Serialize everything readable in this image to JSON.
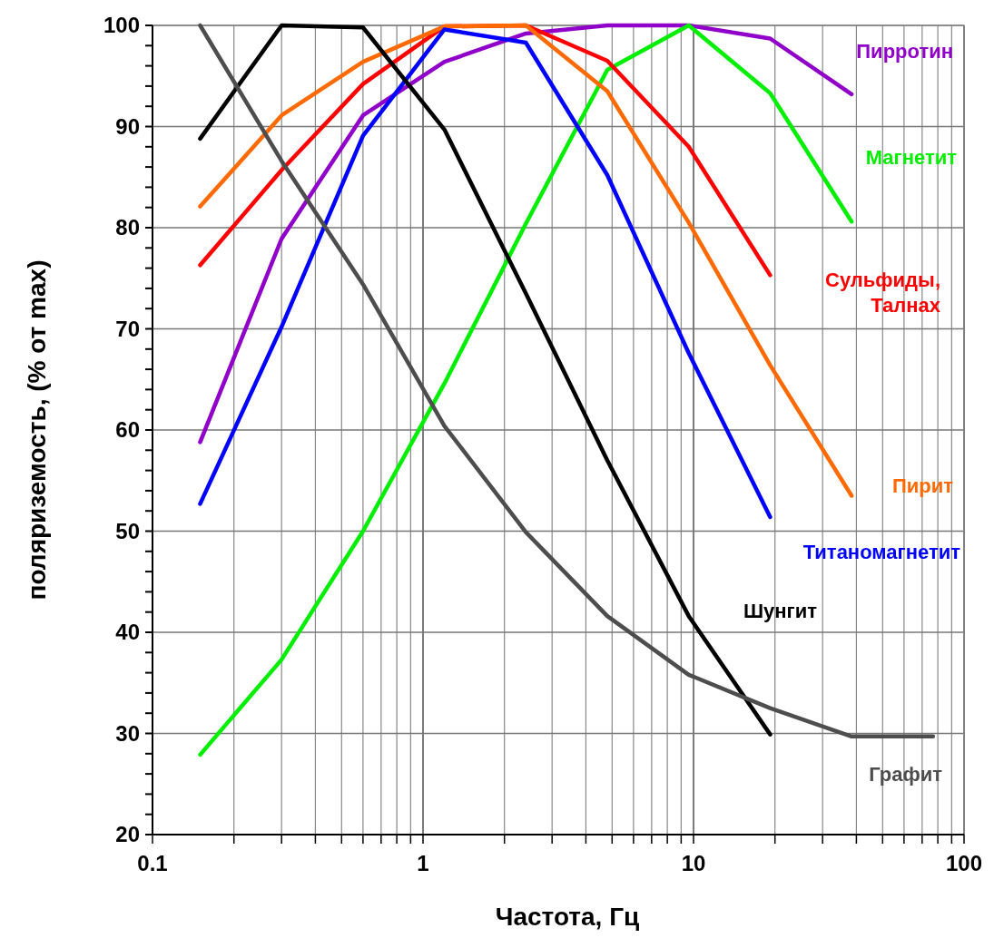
{
  "chart_data": {
    "type": "line",
    "xlabel": "Частота, Гц",
    "ylabel": "поляриземость, (% от max)",
    "log": "x",
    "grid": true,
    "marker": "none",
    "line_style": "solid",
    "xlim": [
      0.1,
      100
    ],
    "ylim": [
      20,
      100
    ],
    "xticks": [
      0.1,
      {
        "value": 0.2,
        "label": null
      },
      {
        "value": 0.3,
        "label": null
      },
      {
        "value": 0.4,
        "label": null
      },
      {
        "value": 0.5,
        "label": null
      },
      {
        "value": 0.6,
        "label": null
      },
      {
        "value": 0.7,
        "label": null
      },
      {
        "value": 0.8,
        "label": null
      },
      {
        "value": 0.9,
        "label": null
      },
      1,
      {
        "value": 2,
        "label": null
      },
      {
        "value": 3,
        "label": null
      },
      {
        "value": 4,
        "label": null
      },
      {
        "value": 5,
        "label": null
      },
      {
        "value": 6,
        "label": null
      },
      {
        "value": 7,
        "label": null
      },
      {
        "value": 8,
        "label": null
      },
      {
        "value": 9,
        "label": null
      },
      10,
      {
        "value": 20,
        "label": null
      },
      {
        "value": 30,
        "label": null
      },
      {
        "value": 40,
        "label": null
      },
      {
        "value": 50,
        "label": null
      },
      {
        "value": 60,
        "label": null
      },
      {
        "value": 70,
        "label": null
      },
      {
        "value": 80,
        "label": null
      },
      {
        "value": 90,
        "label": null
      },
      100
    ],
    "yticks": [
      20,
      {
        "value": 22,
        "label": null
      },
      {
        "value": 24,
        "label": null
      },
      {
        "value": 26,
        "label": null
      },
      {
        "value": 28,
        "label": null
      },
      30,
      {
        "value": 32,
        "label": null
      },
      {
        "value": 34,
        "label": null
      },
      {
        "value": 36,
        "label": null
      },
      {
        "value": 38,
        "label": null
      },
      40,
      {
        "value": 42,
        "label": null
      },
      {
        "value": 44,
        "label": null
      },
      {
        "value": 46,
        "label": null
      },
      {
        "value": 48,
        "label": null
      },
      50,
      {
        "value": 52,
        "label": null
      },
      {
        "value": 54,
        "label": null
      },
      {
        "value": 56,
        "label": null
      },
      {
        "value": 58,
        "label": null
      },
      60,
      {
        "value": 62,
        "label": null
      },
      {
        "value": 64,
        "label": null
      },
      {
        "value": 66,
        "label": null
      },
      {
        "value": 68,
        "label": null
      },
      70,
      {
        "value": 72,
        "label": null
      },
      {
        "value": 74,
        "label": null
      },
      {
        "value": 76,
        "label": null
      },
      {
        "value": 78,
        "label": null
      },
      80,
      {
        "value": 82,
        "label": null
      },
      {
        "value": 84,
        "label": null
      },
      {
        "value": 86,
        "label": null
      },
      {
        "value": 88,
        "label": null
      },
      90,
      {
        "value": 92,
        "label": null
      },
      {
        "value": 94,
        "label": null
      },
      {
        "value": 96,
        "label": null
      },
      {
        "value": 98,
        "label": null
      },
      100
    ],
    "x": [
      0.15,
      0.3,
      0.6,
      1.2,
      2.4,
      4.8,
      9.6,
      19.2,
      38.4,
      76.8
    ],
    "series": [
      {
        "name": "Пирротин",
        "color": "#9000c8",
        "values": [
          58.8,
          78.9,
          91.1,
          96.4,
          99.2,
          100,
          100,
          98.7,
          93.2,
          null
        ]
      },
      {
        "name": "Магнетит",
        "color": "#00ee00",
        "values": [
          27.9,
          37.3,
          50,
          64.6,
          80.4,
          95.6,
          100,
          93.3,
          80.6,
          null
        ]
      },
      {
        "name": "Сульфиды, Талнах",
        "color": "#ff0000",
        "values": [
          76.3,
          85.7,
          94.2,
          99.9,
          100,
          96.5,
          88,
          75.3,
          null,
          null
        ]
      },
      {
        "name": "Пирит",
        "color": "#ff6a00",
        "values": [
          82.1,
          91.1,
          96.4,
          99.9,
          100,
          93.5,
          80.5,
          66.4,
          53.5,
          null
        ]
      },
      {
        "name": "Титаномагнетит",
        "color": "#0000ff",
        "values": [
          52.7,
          70.2,
          89.1,
          99.6,
          98.3,
          85.2,
          67.6,
          51.4,
          null,
          null
        ]
      },
      {
        "name": "Шунгит",
        "color": "#000000",
        "values": [
          88.8,
          100,
          99.8,
          89.7,
          73.5,
          57,
          41.6,
          29.9,
          null,
          null
        ]
      },
      {
        "name": "Графит",
        "color": "#4d4d4d",
        "values": [
          100,
          86.6,
          74.4,
          60.4,
          49.9,
          41.6,
          35.8,
          32.5,
          29.7,
          29.7
        ]
      }
    ]
  }
}
